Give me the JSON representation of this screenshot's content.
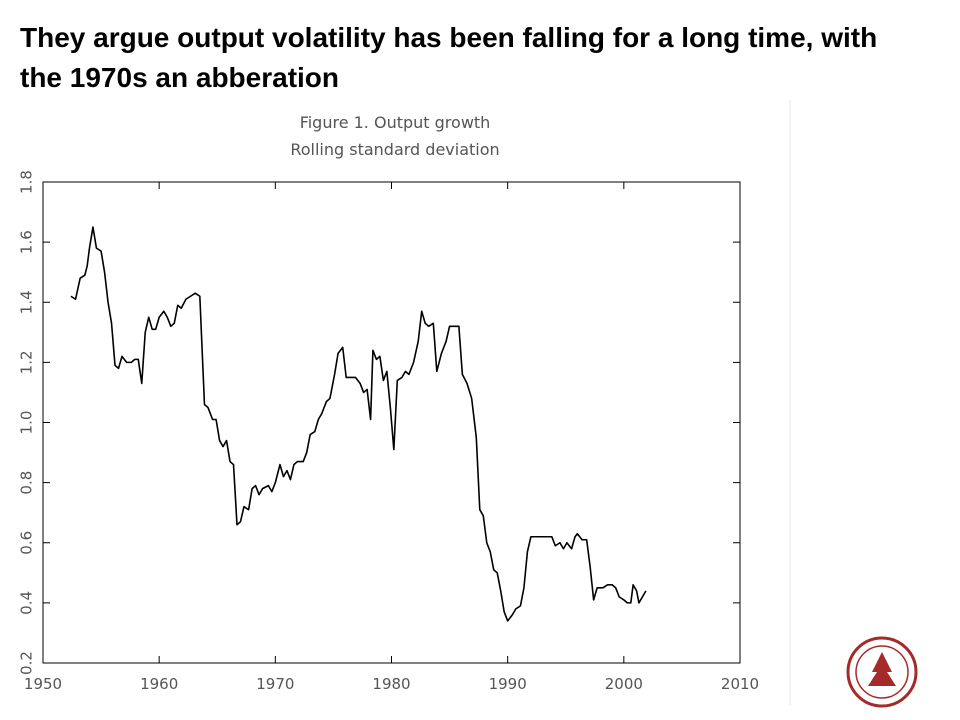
{
  "slide_title": "They argue output volatility has been falling for a long time, with the 1970s an abberation",
  "chart_data": {
    "type": "line",
    "title": "Figure 1. Output growth",
    "subtitle": "Rolling standard deviation",
    "x": [
      1952.4,
      1952.8,
      1953.2,
      1953.6,
      1953.8,
      1954.0,
      1954.3,
      1954.6,
      1955.0,
      1955.3,
      1955.6,
      1955.9,
      1956.2,
      1956.5,
      1956.8,
      1957.2,
      1957.6,
      1957.9,
      1958.2,
      1958.5,
      1958.8,
      1959.1,
      1959.4,
      1959.7,
      1960.0,
      1960.4,
      1960.7,
      1961.0,
      1961.3,
      1961.6,
      1961.9,
      1962.3,
      1962.7,
      1963.1,
      1963.5,
      1963.9,
      1964.2,
      1964.6,
      1964.9,
      1965.2,
      1965.5,
      1965.8,
      1966.1,
      1966.4,
      1966.7,
      1967.0,
      1967.3,
      1967.7,
      1968.0,
      1968.3,
      1968.6,
      1968.9,
      1969.4,
      1969.7,
      1970.0,
      1970.4,
      1970.7,
      1971.0,
      1971.3,
      1971.6,
      1971.9,
      1972.4,
      1972.7,
      1973.0,
      1973.4,
      1973.7,
      1974.0,
      1974.4,
      1974.7,
      1975.1,
      1975.4,
      1975.8,
      1976.1,
      1976.5,
      1976.9,
      1977.3,
      1977.6,
      1977.9,
      1978.2,
      1978.4,
      1978.7,
      1979.0,
      1979.3,
      1979.6,
      1979.9,
      1980.2,
      1980.5,
      1980.9,
      1981.2,
      1981.5,
      1981.9,
      1982.3,
      1982.6,
      1982.9,
      1983.2,
      1983.6,
      1983.9,
      1984.3,
      1984.7,
      1985.0,
      1985.4,
      1985.8,
      1986.1,
      1986.5,
      1986.9,
      1987.3,
      1987.6,
      1987.9,
      1988.2,
      1988.5,
      1988.8,
      1989.1,
      1989.4,
      1989.7,
      1990.0,
      1990.4,
      1990.7,
      1991.1,
      1991.4,
      1991.7,
      1992.0,
      1992.4,
      1992.9,
      1993.4,
      1993.8,
      1994.1,
      1994.5,
      1994.8,
      1995.1,
      1995.5,
      1995.8,
      1996.0,
      1996.4,
      1996.8,
      1997.1,
      1997.4,
      1997.7,
      1998.2,
      1998.6,
      1999.0,
      1999.3,
      1999.6,
      2000.0,
      2000.3,
      2000.6,
      2000.8,
      2001.1,
      2001.3,
      2001.6,
      2001.9
    ],
    "series": [
      {
        "name": "Output growth",
        "color": "#000000",
        "values": [
          1.42,
          1.41,
          1.48,
          1.49,
          1.52,
          1.58,
          1.65,
          1.58,
          1.57,
          1.5,
          1.4,
          1.33,
          1.19,
          1.18,
          1.22,
          1.2,
          1.2,
          1.21,
          1.21,
          1.13,
          1.3,
          1.35,
          1.31,
          1.31,
          1.35,
          1.37,
          1.35,
          1.32,
          1.33,
          1.39,
          1.38,
          1.41,
          1.42,
          1.43,
          1.42,
          1.06,
          1.05,
          1.01,
          1.01,
          0.94,
          0.92,
          0.94,
          0.87,
          0.86,
          0.66,
          0.67,
          0.72,
          0.71,
          0.78,
          0.79,
          0.76,
          0.78,
          0.79,
          0.77,
          0.8,
          0.86,
          0.82,
          0.84,
          0.81,
          0.86,
          0.87,
          0.87,
          0.9,
          0.96,
          0.97,
          1.01,
          1.03,
          1.07,
          1.08,
          1.16,
          1.23,
          1.25,
          1.15,
          1.15,
          1.15,
          1.13,
          1.1,
          1.11,
          1.01,
          1.24,
          1.21,
          1.22,
          1.14,
          1.17,
          1.05,
          0.91,
          1.14,
          1.15,
          1.17,
          1.16,
          1.2,
          1.27,
          1.37,
          1.33,
          1.32,
          1.33,
          1.17,
          1.23,
          1.27,
          1.32,
          1.32,
          1.32,
          1.16,
          1.13,
          1.08,
          0.95,
          0.71,
          0.69,
          0.6,
          0.57,
          0.51,
          0.5,
          0.44,
          0.37,
          0.34,
          0.36,
          0.38,
          0.39,
          0.45,
          0.57,
          0.62,
          0.62,
          0.62,
          0.62,
          0.62,
          0.59,
          0.6,
          0.58,
          0.6,
          0.58,
          0.62,
          0.63,
          0.61,
          0.61,
          0.52,
          0.41,
          0.45,
          0.45,
          0.46,
          0.46,
          0.45,
          0.42,
          0.41,
          0.4,
          0.4,
          0.46,
          0.44,
          0.4,
          0.42,
          0.44
        ]
      }
    ],
    "xlim": [
      1950,
      2010
    ],
    "xticks": [
      1950,
      1960,
      1970,
      1980,
      1990,
      2000,
      2010
    ],
    "ylim": [
      0.2,
      1.8
    ],
    "yticks": [
      0.2,
      0.4,
      0.6,
      0.8,
      {
        "value": 1.0,
        "label": "1.0"
      },
      1.2,
      1.4,
      1.6,
      1.8
    ],
    "grid": false
  }
}
